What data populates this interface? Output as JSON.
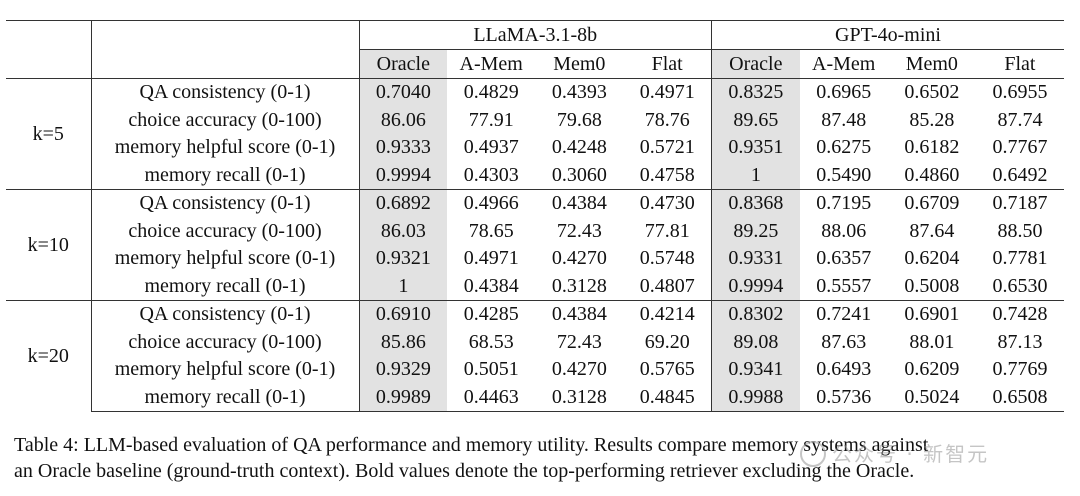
{
  "table": {
    "groups": [
      "LLaMA-3.1-8b",
      "GPT-4o-mini"
    ],
    "columns": [
      "Oracle",
      "A-Mem",
      "Mem0",
      "Flat",
      "Oracle",
      "A-Mem",
      "Mem0",
      "Flat"
    ],
    "blocks": [
      {
        "k": "k=5",
        "rows": [
          {
            "metric": "QA consistency (0-1)",
            "values": [
              "0.7040",
              "0.4829",
              "0.4393",
              "0.4971",
              "0.8325",
              "0.6965",
              "0.6502",
              "0.6955"
            ],
            "bold": [
              3,
              5
            ]
          },
          {
            "metric": "choice accuracy (0-100)",
            "values": [
              "86.06",
              "77.91",
              "79.68",
              "78.76",
              "89.65",
              "87.48",
              "85.28",
              "87.74"
            ],
            "bold": [
              2,
              7
            ]
          },
          {
            "metric": "memory helpful score (0-1)",
            "values": [
              "0.9333",
              "0.4937",
              "0.4248",
              "0.5721",
              "0.9351",
              "0.6275",
              "0.6182",
              "0.7767"
            ],
            "bold": [
              3,
              7
            ]
          },
          {
            "metric": "memory recall (0-1)",
            "values": [
              "0.9994",
              "0.4303",
              "0.3060",
              "0.4758",
              "1",
              "0.5490",
              "0.4860",
              "0.6492"
            ],
            "bold": [
              3
            ]
          }
        ]
      },
      {
        "k": "k=10",
        "rows": [
          {
            "metric": "QA consistency (0-1)",
            "values": [
              "0.6892",
              "0.4966",
              "0.4384",
              "0.4730",
              "0.8368",
              "0.7195",
              "0.6709",
              "0.7187"
            ],
            "bold": [
              1,
              5
            ]
          },
          {
            "metric": "choice accuracy (0-100)",
            "values": [
              "86.03",
              "78.65",
              "72.43",
              "77.81",
              "89.25",
              "88.06",
              "87.64",
              "88.50"
            ],
            "bold": [
              1,
              7
            ]
          },
          {
            "metric": "memory helpful score (0-1)",
            "values": [
              "0.9321",
              "0.4971",
              "0.4270",
              "0.5748",
              "0.9331",
              "0.6357",
              "0.6204",
              "0.7781"
            ],
            "bold": [
              3,
              7
            ]
          },
          {
            "metric": "memory recall (0-1)",
            "values": [
              "1",
              "0.4384",
              "0.3128",
              "0.4807",
              "0.9994",
              "0.5557",
              "0.5008",
              "0.6530"
            ],
            "bold": [
              3,
              7
            ]
          }
        ]
      },
      {
        "k": "k=20",
        "rows": [
          {
            "metric": "QA consistency (0-1)",
            "values": [
              "0.6910",
              "0.4285",
              "0.4384",
              "0.4214",
              "0.8302",
              "0.7241",
              "0.6901",
              "0.7428"
            ],
            "bold": [
              2,
              7
            ]
          },
          {
            "metric": "choice accuracy (0-100)",
            "values": [
              "85.86",
              "68.53",
              "72.43",
              "69.20",
              "89.08",
              "87.63",
              "88.01",
              "87.13"
            ],
            "bold": [
              2,
              6
            ]
          },
          {
            "metric": "memory helpful score (0-1)",
            "values": [
              "0.9329",
              "0.5051",
              "0.4270",
              "0.5765",
              "0.9341",
              "0.6493",
              "0.6209",
              "0.7769"
            ],
            "bold": [
              3,
              7
            ]
          },
          {
            "metric": "memory recall (0-1)",
            "values": [
              "0.9989",
              "0.4463",
              "0.3128",
              "0.4845",
              "0.9988",
              "0.5736",
              "0.5024",
              "0.6508"
            ],
            "bold": [
              3,
              7
            ]
          }
        ]
      }
    ]
  },
  "caption": {
    "line1": "Table 4: LLM-based evaluation of QA performance and memory utility. Results compare memory systems against",
    "line2": "an Oracle baseline (ground-truth context). Bold values denote the top-performing retriever excluding the Oracle."
  },
  "watermark": {
    "text": "公众号 · 新智元"
  },
  "colors": {
    "oracle_shading": "#e2e2e2",
    "rule": "#333333"
  }
}
